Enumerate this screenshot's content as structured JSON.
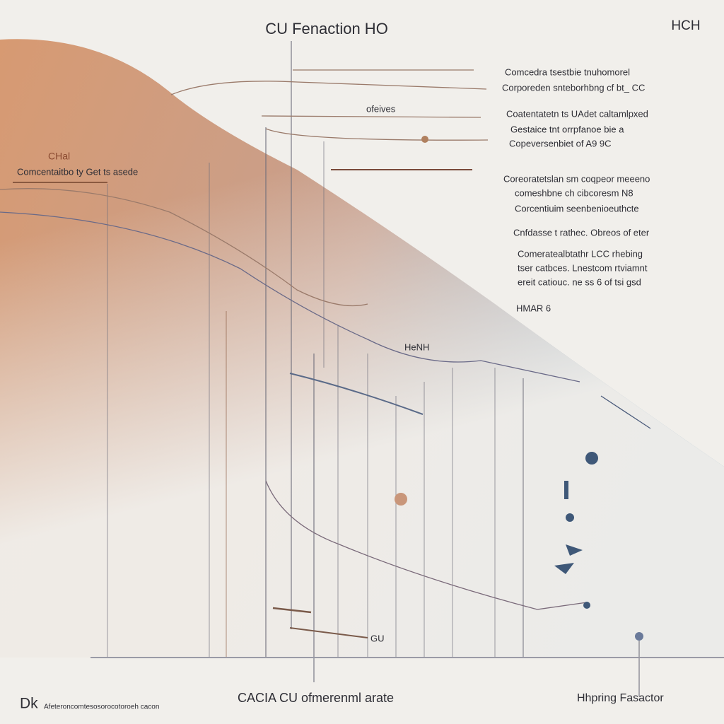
{
  "header": {
    "title": "CU Fenaction HO",
    "corner": "HCH"
  },
  "left_label": {
    "title": "CHal",
    "text": "Comcentaitbo ty Get ts asede"
  },
  "annotations": [
    "Comcedra tsestbie tnuhomorel",
    "Corporeden snteborhbng cf bt_ CC",
    "Coatentatetn ts UAdet caltamlpxed",
    "Gestaice tnt orrpfanoe bie a",
    "Copeversenbiet of A9 9C",
    "Coreoratetslan sm coqpeor meeeno",
    "comeshbne ch cibcoresm N8",
    "Corcentiuim seenbenioeuthcte",
    "Cnfdasse t rathec. Obreos of eter",
    "Comeratealbtathr LCC rhebing",
    "tser catbces. Lnestcom rtviamnt",
    "ereit catiouc. ne ss 6 of tsi gsd",
    "HMAR 6"
  ],
  "inline_labels": [
    "ofeives",
    "HeNH",
    "GU"
  ],
  "footer": {
    "center": "CACIA CU ofmerenml arate",
    "right": "Hhpring Fasactor",
    "logo": "Dk",
    "note": "Afeteroncomtesosorocotoroeh cacon"
  }
}
